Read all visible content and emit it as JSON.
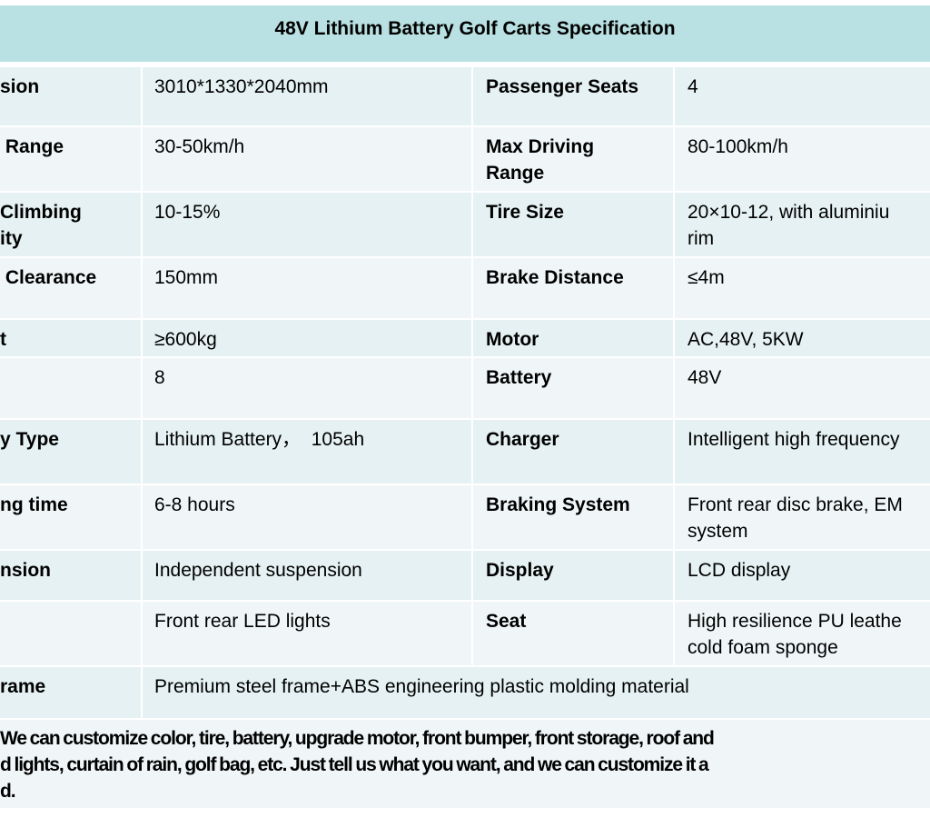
{
  "title": "48V Lithium Battery Golf Carts Specification",
  "rows": [
    {
      "l1": [
        "sion"
      ],
      "v1": [
        "3010*1330*2040mm"
      ],
      "l2": [
        "Passenger Seats"
      ],
      "v2": [
        "4"
      ]
    },
    {
      "l1": [
        " Range"
      ],
      "v1": [
        "30-50km/h"
      ],
      "l2": [
        "Max Driving",
        "Range"
      ],
      "v2": [
        "80-100km/h"
      ]
    },
    {
      "l1": "Climbing|ity",
      "v1": [
        "10-15%"
      ],
      "l2": [
        "Tire Size"
      ],
      "v2": [
        "20×10-12, with aluminiu",
        "rim"
      ]
    },
    {
      "l1": [
        " Clearance"
      ],
      "v1": [
        "150mm"
      ],
      "l2": [
        "Brake Distance"
      ],
      "v2": [
        "≤4m"
      ]
    },
    {
      "l1": [
        "t"
      ],
      "v1": [
        "≥600kg"
      ],
      "l2": [
        "Motor"
      ],
      "v2": [
        "AC,48V, 5KW"
      ]
    },
    {
      "l1": [
        ""
      ],
      "v1": [
        "8"
      ],
      "l2": [
        "Battery"
      ],
      "v2": [
        "48V"
      ]
    },
    {
      "l1": [
        "y Type"
      ],
      "v1": [
        "Lithium Battery，  105ah"
      ],
      "l2": [
        "Charger"
      ],
      "v2": [
        "Intelligent high frequency"
      ]
    },
    {
      "l1": [
        "ng time"
      ],
      "v1": [
        "6-8 hours"
      ],
      "l2": [
        "Braking System"
      ],
      "v2": [
        "Front rear disc brake, EM",
        "system"
      ]
    },
    {
      "l1": [
        "nsion"
      ],
      "v1": [
        "Independent suspension"
      ],
      "l2": [
        "Display"
      ],
      "v2": [
        "LCD display"
      ]
    },
    {
      "l1": [
        ""
      ],
      "v1": [
        "Front rear LED lights"
      ],
      "l2": [
        "Seat"
      ],
      "v2": [
        "High resilience PU leathe",
        "cold foam sponge"
      ]
    }
  ],
  "frame_row": {
    "label": "rame",
    "value": "Premium steel frame+ABS engineering plastic molding material"
  },
  "note": [
    "We can customize color, tire, battery, upgrade motor, front bumper,  front storage, roof and",
    "d lights, curtain of rain, golf bag, etc. Just tell us what you want, and we can customize it a",
    "d."
  ]
}
